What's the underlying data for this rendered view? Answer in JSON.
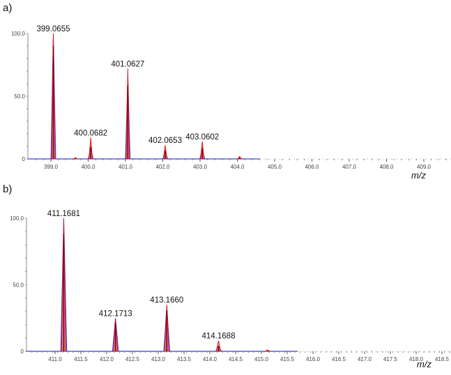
{
  "chart_data": [
    {
      "type": "line",
      "panel_label": "a)",
      "xlabel": "m/z",
      "ylabel": "",
      "ylim": [
        0,
        100
      ],
      "xlim": [
        398.6,
        409.8
      ],
      "data_extent": [
        398.6,
        404.6
      ],
      "yticks": [
        "0",
        "50.0",
        "100.0"
      ],
      "xticks": [
        "399.0",
        "400.0",
        "401.0",
        "402.0",
        "403.0",
        "404.0",
        "405.0",
        "406.0",
        "407.0",
        "408.0",
        "409.0"
      ],
      "series": [
        {
          "color": "#e02020",
          "peaks": [
            [
              399.0655,
              100
            ],
            [
              399.66,
              1
            ],
            [
              400.0682,
              17
            ],
            [
              401.0627,
              72
            ],
            [
              402.0653,
              11
            ],
            [
              403.0602,
              14
            ],
            [
              404.06,
              2
            ]
          ]
        },
        {
          "color": "#3030e0",
          "peaks": [
            [
              399.0655,
              100
            ],
            [
              400.0682,
              10
            ],
            [
              401.0627,
              65
            ],
            [
              402.0653,
              7
            ],
            [
              403.0602,
              9
            ],
            [
              404.06,
              1
            ]
          ]
        }
      ],
      "annotations": [
        {
          "x": 399.0655,
          "y": 100,
          "text": "399.0655"
        },
        {
          "x": 400.0682,
          "y": 17,
          "text": "400.0682"
        },
        {
          "x": 401.0627,
          "y": 72,
          "text": "401.0627"
        },
        {
          "x": 402.0653,
          "y": 11,
          "text": "402.0653"
        },
        {
          "x": 403.0602,
          "y": 14,
          "text": "403.0602"
        }
      ]
    },
    {
      "type": "line",
      "panel_label": "b)",
      "xlabel": "m/z",
      "ylabel": "",
      "ylim": [
        0,
        100
      ],
      "xlim": [
        410.55,
        418.75
      ],
      "data_extent": [
        410.55,
        415.7
      ],
      "yticks": [
        "0",
        "50.0",
        "100.0"
      ],
      "xticks": [
        "411.0",
        "411.5",
        "412.0",
        "412.5",
        "413.0",
        "413.5",
        "414.0",
        "414.5",
        "415.0",
        "415.5",
        "416.0",
        "416.5",
        "417.0",
        "417.5",
        "418.0",
        "418.5"
      ],
      "series": [
        {
          "color": "#e02020",
          "peaks": [
            [
              411.1681,
              98
            ],
            [
              412.1713,
              24
            ],
            [
              413.166,
              35
            ],
            [
              414.1688,
              8
            ],
            [
              415.12,
              1
            ]
          ]
        },
        {
          "color": "#3030e0",
          "peaks": [
            [
              411.1681,
              100
            ],
            [
              412.1713,
              25
            ],
            [
              413.166,
              34
            ],
            [
              414.1688,
              4
            ],
            [
              415.12,
              0.5
            ]
          ]
        }
      ],
      "annotations": [
        {
          "x": 411.1681,
          "y": 100,
          "text": "411.1681"
        },
        {
          "x": 412.1713,
          "y": 25,
          "text": "412.1713"
        },
        {
          "x": 413.166,
          "y": 35,
          "text": "413.1660"
        },
        {
          "x": 414.1688,
          "y": 8,
          "text": "414.1688"
        }
      ]
    }
  ]
}
